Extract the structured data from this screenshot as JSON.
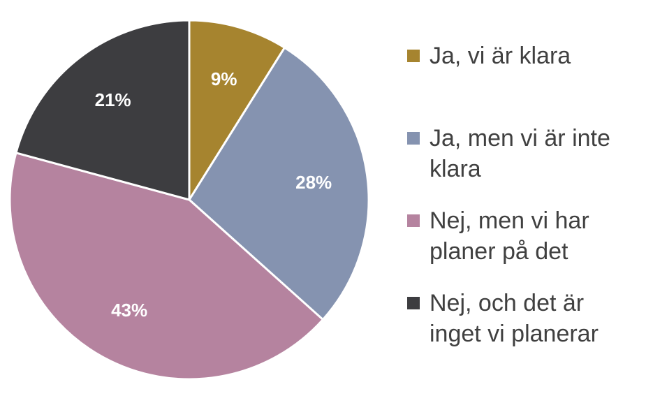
{
  "chart_data": {
    "type": "pie",
    "title": "",
    "slices": [
      {
        "label": "Ja, vi är klara",
        "value": 9,
        "display": "9%",
        "color": "#A6842F"
      },
      {
        "label": "Ja, men vi är inte klara",
        "value": 28,
        "display": "28%",
        "color": "#8593B0"
      },
      {
        "label": "Nej, men vi har planer på det",
        "value": 43,
        "display": "43%",
        "color": "#B5839F"
      },
      {
        "label": "Nej, och det är inget vi planerar",
        "value": 21,
        "display": "21%",
        "color": "#3D3D40"
      }
    ],
    "start_angle_deg": 0,
    "direction": "clockwise",
    "legend_position": "right"
  }
}
